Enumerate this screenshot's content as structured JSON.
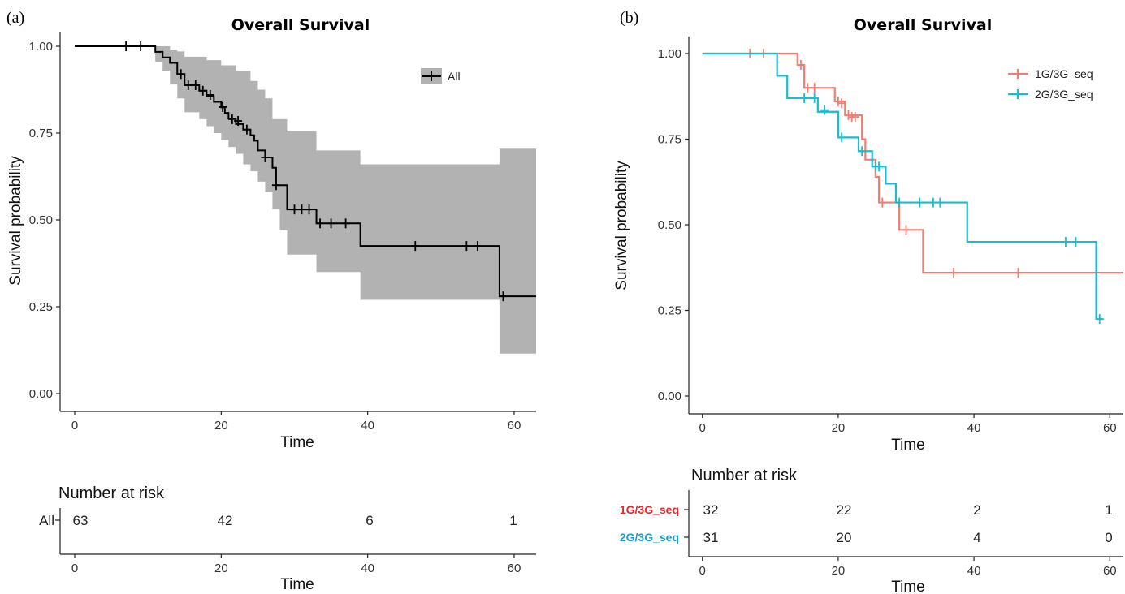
{
  "colors": {
    "all": "#000000",
    "ci": "#b2b2b2",
    "g1": "#f07f73",
    "g2": "#17becf",
    "g1_label": "#e8262b",
    "g2_label": "#1a9fc7"
  },
  "panel_a": {
    "tag": "(a)",
    "title": "Overall Survival",
    "ylabel": "Survival probability",
    "xlabel": "Time",
    "legend": "All",
    "risk_title": "Number at risk",
    "risk_xlabel": "Time",
    "risk_rows": [
      {
        "label": "All",
        "values": [
          "63",
          "42",
          "6",
          "1"
        ]
      }
    ]
  },
  "panel_b": {
    "tag": "(b)",
    "title": "Overall Survival",
    "ylabel": "Survival probability",
    "xlabel": "Time",
    "legend": [
      "1G/3G_seq",
      "2G/3G_seq"
    ],
    "risk_title": "Number at risk",
    "risk_xlabel": "Time",
    "risk_rows": [
      {
        "label": "1G/3G_seq",
        "values": [
          "32",
          "22",
          "2",
          "1"
        ]
      },
      {
        "label": "2G/3G_seq",
        "values": [
          "31",
          "20",
          "4",
          "0"
        ]
      }
    ]
  },
  "chart_data": [
    {
      "type": "line",
      "title": "Overall Survival",
      "xlabel": "Time",
      "ylabel": "Survival probability",
      "xlim": [
        -2,
        63
      ],
      "ylim": [
        0,
        1
      ],
      "x_ticks": [
        0,
        20,
        40,
        60
      ],
      "y_ticks": [
        0.0,
        0.25,
        0.5,
        0.75,
        1.0
      ],
      "y_tick_labels": [
        "0.00",
        "0.25",
        "0.50",
        "0.75",
        "1.00"
      ],
      "legend_position": "top-right",
      "series": [
        {
          "name": "All",
          "step": [
            [
              0,
              1.0
            ],
            [
              11,
              0.984
            ],
            [
              12,
              0.968
            ],
            [
              13,
              0.952
            ],
            [
              14,
              0.92
            ],
            [
              15,
              0.888
            ],
            [
              17,
              0.872
            ],
            [
              18,
              0.856
            ],
            [
              19,
              0.84
            ],
            [
              20,
              0.824
            ],
            [
              20.5,
              0.808
            ],
            [
              21,
              0.792
            ],
            [
              22,
              0.776
            ],
            [
              23,
              0.76
            ],
            [
              24,
              0.744
            ],
            [
              24.5,
              0.728
            ],
            [
              25,
              0.7
            ],
            [
              26,
              0.68
            ],
            [
              27,
              0.65
            ],
            [
              27.5,
              0.6
            ],
            [
              29,
              0.53
            ],
            [
              33,
              0.49
            ],
            [
              39,
              0.425
            ],
            [
              58,
              0.28
            ],
            [
              63,
              0.28
            ]
          ],
          "censor": [
            [
              7,
              1.0
            ],
            [
              9,
              1.0
            ],
            [
              14.5,
              0.92
            ],
            [
              15.5,
              0.888
            ],
            [
              16.5,
              0.888
            ],
            [
              17.5,
              0.872
            ],
            [
              18.5,
              0.86
            ],
            [
              20.2,
              0.825
            ],
            [
              21.5,
              0.79
            ],
            [
              22.3,
              0.785
            ],
            [
              23.5,
              0.76
            ],
            [
              26,
              0.68
            ],
            [
              27.5,
              0.6
            ],
            [
              30,
              0.53
            ],
            [
              31,
              0.53
            ],
            [
              32,
              0.53
            ],
            [
              33.5,
              0.49
            ],
            [
              35,
              0.49
            ],
            [
              37,
              0.49
            ],
            [
              46.5,
              0.425
            ],
            [
              53.5,
              0.425
            ],
            [
              55,
              0.425
            ],
            [
              58.5,
              0.28
            ]
          ],
          "ci_upper": [
            [
              0,
              1.0
            ],
            [
              11,
              1.0
            ],
            [
              13,
              0.99
            ],
            [
              14,
              0.985
            ],
            [
              15,
              0.97
            ],
            [
              18,
              0.96
            ],
            [
              20,
              0.945
            ],
            [
              22,
              0.93
            ],
            [
              24,
              0.9
            ],
            [
              25,
              0.875
            ],
            [
              26,
              0.85
            ],
            [
              27,
              0.79
            ],
            [
              29,
              0.755
            ],
            [
              33,
              0.7
            ],
            [
              39,
              0.66
            ],
            [
              58,
              0.705
            ],
            [
              63,
              0.705
            ]
          ],
          "ci_lower": [
            [
              0,
              1.0
            ],
            [
              11,
              0.955
            ],
            [
              12,
              0.93
            ],
            [
              13,
              0.89
            ],
            [
              14,
              0.85
            ],
            [
              15,
              0.81
            ],
            [
              17,
              0.79
            ],
            [
              18,
              0.77
            ],
            [
              19,
              0.75
            ],
            [
              20,
              0.73
            ],
            [
              21,
              0.71
            ],
            [
              22,
              0.69
            ],
            [
              23,
              0.66
            ],
            [
              24,
              0.64
            ],
            [
              25,
              0.61
            ],
            [
              26,
              0.58
            ],
            [
              27,
              0.53
            ],
            [
              28,
              0.47
            ],
            [
              29,
              0.4
            ],
            [
              33,
              0.35
            ],
            [
              39,
              0.27
            ],
            [
              58,
              0.115
            ],
            [
              63,
              0.115
            ]
          ]
        }
      ],
      "risk_table": {
        "times": [
          0,
          20,
          40,
          60
        ],
        "All": [
          63,
          42,
          6,
          1
        ]
      }
    },
    {
      "type": "line",
      "title": "Overall Survival",
      "xlabel": "Time",
      "ylabel": "Survival probability",
      "xlim": [
        -2,
        62
      ],
      "ylim": [
        0,
        1
      ],
      "x_ticks": [
        0,
        20,
        40,
        60
      ],
      "y_ticks": [
        0.0,
        0.25,
        0.5,
        0.75,
        1.0
      ],
      "y_tick_labels": [
        "0.00",
        "0.25",
        "0.50",
        "0.75",
        "1.00"
      ],
      "legend_position": "top-right",
      "series": [
        {
          "name": "1G/3G_seq",
          "step": [
            [
              0,
              1.0
            ],
            [
              14,
              0.967
            ],
            [
              15,
              0.9
            ],
            [
              19.5,
              0.86
            ],
            [
              21,
              0.82
            ],
            [
              23.5,
              0.75
            ],
            [
              24,
              0.69
            ],
            [
              25.5,
              0.64
            ],
            [
              26,
              0.565
            ],
            [
              29,
              0.485
            ],
            [
              32.5,
              0.36
            ],
            [
              62,
              0.36
            ]
          ],
          "censor": [
            [
              7,
              1.0
            ],
            [
              9,
              1.0
            ],
            [
              14.5,
              0.967
            ],
            [
              15.5,
              0.9
            ],
            [
              16.5,
              0.9
            ],
            [
              20,
              0.86
            ],
            [
              20.5,
              0.855
            ],
            [
              21.5,
              0.82
            ],
            [
              22,
              0.815
            ],
            [
              22.5,
              0.815
            ],
            [
              26.5,
              0.565
            ],
            [
              30,
              0.485
            ],
            [
              37,
              0.36
            ],
            [
              46.5,
              0.36
            ]
          ]
        },
        {
          "name": "2G/3G_seq",
          "step": [
            [
              0,
              1.0
            ],
            [
              11,
              0.935
            ],
            [
              12.5,
              0.87
            ],
            [
              17,
              0.83
            ],
            [
              20,
              0.755
            ],
            [
              23,
              0.715
            ],
            [
              25,
              0.67
            ],
            [
              27,
              0.62
            ],
            [
              28.5,
              0.565
            ],
            [
              39,
              0.45
            ],
            [
              58,
              0.225
            ],
            [
              59,
              0.225
            ]
          ],
          "censor": [
            [
              15,
              0.87
            ],
            [
              16.5,
              0.87
            ],
            [
              18,
              0.835
            ],
            [
              20.5,
              0.755
            ],
            [
              23.5,
              0.715
            ],
            [
              25.5,
              0.67
            ],
            [
              26,
              0.67
            ],
            [
              29,
              0.565
            ],
            [
              32,
              0.565
            ],
            [
              34,
              0.565
            ],
            [
              35,
              0.565
            ],
            [
              53.5,
              0.45
            ],
            [
              55,
              0.45
            ],
            [
              58.5,
              0.225
            ]
          ]
        }
      ],
      "risk_table": {
        "times": [
          0,
          20,
          40,
          60
        ],
        "1G/3G_seq": [
          32,
          22,
          2,
          1
        ],
        "2G/3G_seq": [
          31,
          20,
          4,
          0
        ]
      }
    }
  ]
}
